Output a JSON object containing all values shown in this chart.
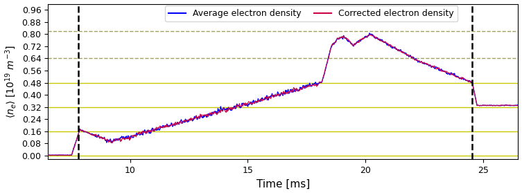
{
  "xlabel": "Time [ms]",
  "ylabel": "$\\langle n_e \\rangle\\ [10^{19}\\ m^{-3}]$",
  "xlim": [
    6.5,
    26.5
  ],
  "ylim": [
    -0.025,
    1.0
  ],
  "yticks": [
    0.0,
    0.08,
    0.16,
    0.24,
    0.32,
    0.4,
    0.48,
    0.56,
    0.64,
    0.72,
    0.8,
    0.88,
    0.96
  ],
  "xticks": [
    10,
    15,
    20,
    25
  ],
  "hlines_solid": [
    0.0,
    0.16,
    0.32,
    0.48
  ],
  "hlines_dashed": [
    0.64,
    0.82
  ],
  "hline_solid_color": "#c8c800",
  "hline_dashed_color": "#a0a060",
  "vlines": [
    7.8,
    24.55
  ],
  "vline_color": "black",
  "avg_color": "#0000ff",
  "corr_color": "#cc0044",
  "figsize": [
    7.53,
    2.79
  ],
  "dpi": 100
}
